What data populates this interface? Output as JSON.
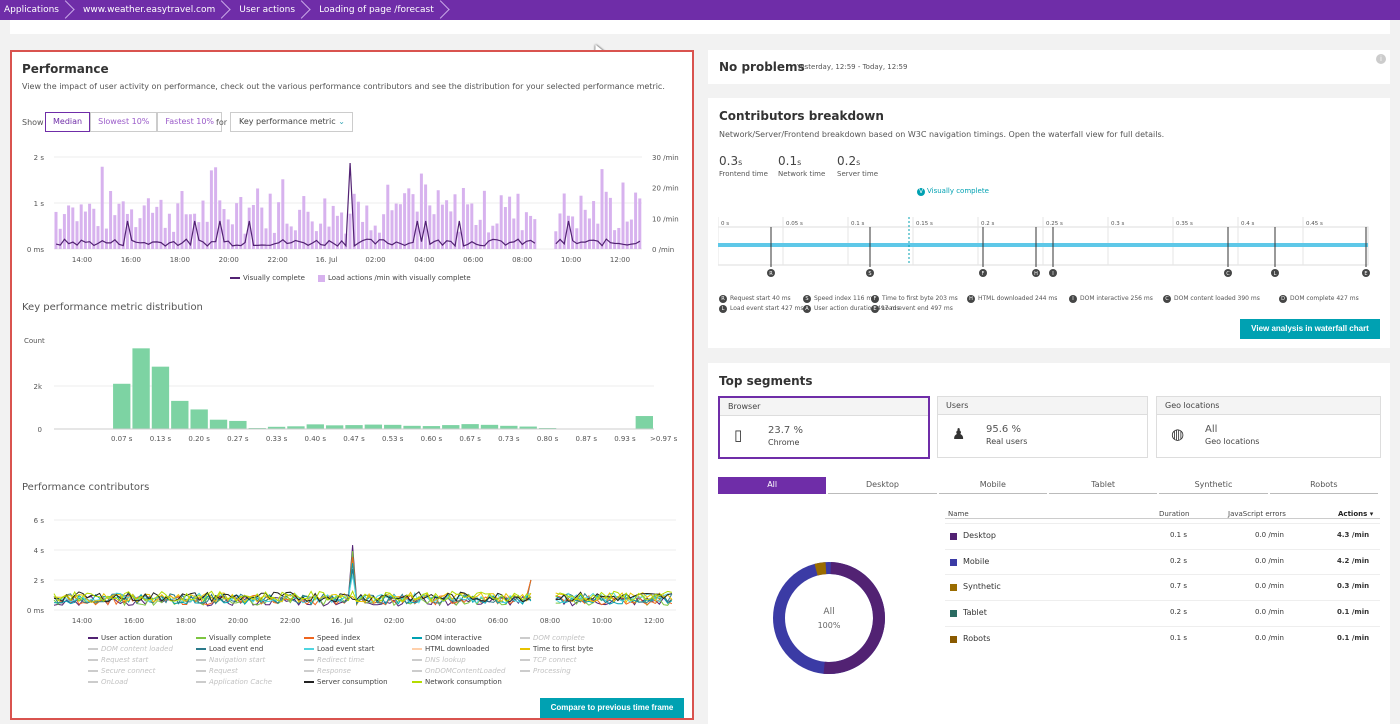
{
  "breadcrumb": [
    "Applications",
    "www.weather.easytravel.com",
    "User actions",
    "Loading of page /forecast"
  ],
  "performance": {
    "title": "Performance",
    "description": "View the impact of user activity on performance, check out the various performance contributors and see the distribution for your selected performance metric.",
    "show_label": "Show",
    "for_label": "for",
    "segments": [
      "Median",
      "Slowest 10%",
      "Fastest 10%"
    ],
    "metric_select": "Key performance metric",
    "chart1": {
      "y_left": [
        "2 s",
        "1 s",
        "0 ms"
      ],
      "y_right": [
        "30 /min",
        "20 /min",
        "10 /min",
        "0 /min"
      ],
      "x_ticks": [
        "14:00",
        "16:00",
        "18:00",
        "20:00",
        "22:00",
        "16. Jul",
        "02:00",
        "04:00",
        "06:00",
        "08:00",
        "10:00",
        "12:00"
      ],
      "legend": [
        "Visually complete",
        "Load actions /min with visually complete"
      ]
    },
    "dist_title": "Key performance metric distribution",
    "dist": {
      "y_label": "Count",
      "y_ticks": [
        "2k",
        "0"
      ],
      "x_ticks": [
        "0.07 s",
        "0.13 s",
        "0.20 s",
        "0.27 s",
        "0.33 s",
        "0.40 s",
        "0.47 s",
        "0.53 s",
        "0.60 s",
        "0.67 s",
        "0.73 s",
        "0.80 s",
        "0.87 s",
        "0.93 s",
        ">0.97 s"
      ]
    },
    "contrib_title": "Performance contributors",
    "contrib": {
      "y_ticks": [
        "6 s",
        "4 s",
        "2 s",
        "0 ms"
      ],
      "x_ticks": [
        "14:00",
        "16:00",
        "18:00",
        "20:00",
        "22:00",
        "16. Jul",
        "02:00",
        "04:00",
        "06:00",
        "08:00",
        "10:00",
        "12:00"
      ]
    },
    "legend_rows": [
      [
        {
          "label": "User action duration",
          "color": "#522273",
          "dim": false
        },
        {
          "label": "Visually complete",
          "color": "#7dc540",
          "dim": false
        },
        {
          "label": "Speed index",
          "color": "#ef651f",
          "dim": false
        },
        {
          "label": "DOM interactive",
          "color": "#00a1b2",
          "dim": false
        },
        {
          "label": "DOM complete",
          "color": "#ccc",
          "dim": true
        }
      ],
      [
        {
          "label": "DOM content loaded",
          "color": "#ccc",
          "dim": true
        },
        {
          "label": "Load event end",
          "color": "#2b7a8a",
          "dim": false
        },
        {
          "label": "Load event start",
          "color": "#4fd5e0",
          "dim": false
        },
        {
          "label": "HTML downloaded",
          "color": "#ffd0ab",
          "dim": false
        },
        {
          "label": "Time to first byte",
          "color": "#e8c300",
          "dim": false
        }
      ],
      [
        {
          "label": "Request start",
          "color": "#ccc",
          "dim": true
        },
        {
          "label": "Navigation start",
          "color": "#ccc",
          "dim": true
        },
        {
          "label": "Redirect time",
          "color": "#ccc",
          "dim": true
        },
        {
          "label": "DNS lookup",
          "color": "#ccc",
          "dim": true
        },
        {
          "label": "TCP connect",
          "color": "#ccc",
          "dim": true
        }
      ],
      [
        {
          "label": "Secure connect",
          "color": "#ccc",
          "dim": true
        },
        {
          "label": "Request",
          "color": "#ccc",
          "dim": true
        },
        {
          "label": "Response",
          "color": "#ccc",
          "dim": true
        },
        {
          "label": "OnDOMContentLoaded",
          "color": "#ccc",
          "dim": true
        },
        {
          "label": "Processing",
          "color": "#ccc",
          "dim": true
        }
      ],
      [
        {
          "label": "OnLoad",
          "color": "#ccc",
          "dim": true
        },
        {
          "label": "Application Cache",
          "color": "#ccc",
          "dim": true
        },
        {
          "label": "Server consumption",
          "color": "#222",
          "dim": false
        },
        {
          "label": "Network consumption",
          "color": "#b4dc00",
          "dim": false
        }
      ]
    ],
    "compare_button": "Compare to previous time frame"
  },
  "problems": {
    "title": "No problems",
    "range": "Yesterday, 12:59 - Today, 12:59"
  },
  "contributors": {
    "title": "Contributors breakdown",
    "description": "Network/Server/Frontend breakdown based on W3C navigation timings. Open the waterfall view for full details.",
    "stats": [
      {
        "value": "0.3",
        "unit": "s",
        "label": "Frontend time"
      },
      {
        "value": "0.1",
        "unit": "s",
        "label": "Network time"
      },
      {
        "value": "0.2",
        "unit": "s",
        "label": "Server time"
      }
    ],
    "marker": "Visually complete",
    "marker_letter": "V",
    "ticks": [
      "0 s",
      "0.05 s",
      "0.1 s",
      "0.15 s",
      "0.2 s",
      "0.25 s",
      "0.3 s",
      "0.35 s",
      "0.4 s",
      "0.45 s"
    ],
    "points": [
      "R",
      "S",
      "F",
      "H",
      "I",
      "C",
      "L",
      "E"
    ],
    "legend": [
      {
        "k": "R",
        "t": "Request start 40 ms"
      },
      {
        "k": "S",
        "t": "Speed index 116 ms"
      },
      {
        "k": "F",
        "t": "Time to first byte 203 ms"
      },
      {
        "k": "H",
        "t": "HTML downloaded 244 ms"
      },
      {
        "k": "I",
        "t": "DOM interactive 256 ms"
      },
      {
        "k": "C",
        "t": "DOM content loaded 390 ms"
      },
      {
        "k": "D",
        "t": "DOM complete 427 ms"
      },
      {
        "k": "L",
        "t": "Load event start 427 ms"
      },
      {
        "k": "A",
        "t": "User action duration 497 ms"
      },
      {
        "k": "E",
        "t": "Load event end 497 ms"
      }
    ],
    "waterfall_button": "View analysis in waterfall chart"
  },
  "segments": {
    "title": "Top segments",
    "cards": [
      {
        "header": "Browser",
        "value": "23.7 %",
        "label": "Chrome",
        "icon": "mobile-icon"
      },
      {
        "header": "Users",
        "value": "95.6 %",
        "label": "Real users",
        "icon": "person-icon"
      },
      {
        "header": "Geo locations",
        "value": "All",
        "label": "Geo locations",
        "icon": "globe-icon"
      }
    ],
    "tabs": [
      "All",
      "Desktop",
      "Mobile",
      "Tablet",
      "Synthetic",
      "Robots"
    ],
    "table_headers": [
      "Name",
      "Duration",
      "JavaScript errors",
      "Actions ▾"
    ],
    "rows": [
      {
        "name": "Desktop",
        "color": "#522273",
        "duration": "0.1 s",
        "errors": "0.0 /min",
        "actions": "4.3 /min"
      },
      {
        "name": "Mobile",
        "color": "#3b3ba5",
        "duration": "0.2 s",
        "errors": "0.0 /min",
        "actions": "4.2 /min"
      },
      {
        "name": "Synthetic",
        "color": "#9a6c00",
        "duration": "0.7 s",
        "errors": "0.0 /min",
        "actions": "0.3 /min"
      },
      {
        "name": "Tablet",
        "color": "#2b6b62",
        "duration": "0.2 s",
        "errors": "0.0 /min",
        "actions": "0.1 /min"
      },
      {
        "name": "Robots",
        "color": "#8a5a00",
        "duration": "0.1 s",
        "errors": "0.0 /min",
        "actions": "0.1 /min"
      }
    ],
    "donut": {
      "label1": "All",
      "label2": "100%"
    }
  }
}
